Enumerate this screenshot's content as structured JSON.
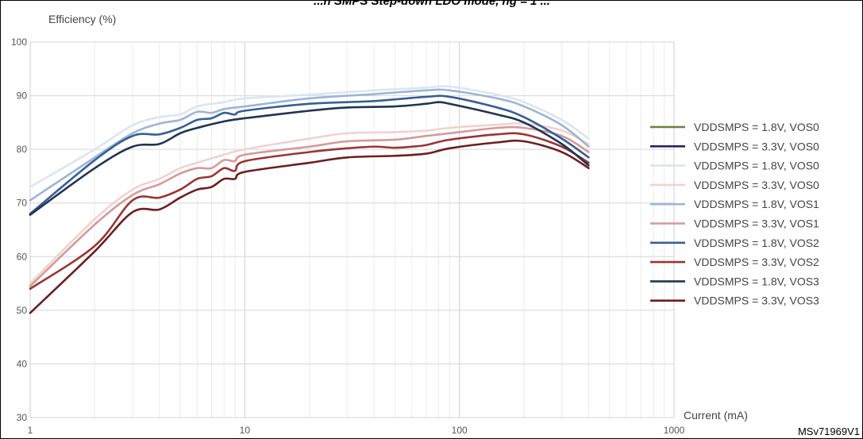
{
  "figure": {
    "title": "...n SMPS Step-down LDO mode, ng = 1 ...",
    "code": "MSv71969V1"
  },
  "chart_data": {
    "type": "line",
    "title": "",
    "xlabel": "Current (mA)",
    "ylabel": "Efficiency (%)",
    "xscale": "log",
    "xlim": [
      1,
      1000
    ],
    "ylim": [
      30,
      100
    ],
    "xticks": [
      1,
      10,
      100,
      1000
    ],
    "yticks": [
      30,
      40,
      50,
      60,
      70,
      80,
      90,
      100
    ],
    "grid": true,
    "legend_position": "right",
    "series": [
      {
        "name": "VDDSMPS = 1.8V, VOS0",
        "color": "#6b7f3a",
        "legend_only": true,
        "points": []
      },
      {
        "name": "VDDSMPS = 3.3V, VOS0",
        "color": "#2f2060",
        "legend_only": true,
        "points": []
      },
      {
        "name": "VDDSMPS = 1.8V, VOS0",
        "color": "#dce5f1",
        "points": [
          [
            1,
            73
          ],
          [
            2,
            80
          ],
          [
            3,
            84.5
          ],
          [
            4,
            86
          ],
          [
            5,
            86.5
          ],
          [
            6,
            88
          ],
          [
            8,
            88.8
          ],
          [
            10,
            89.5
          ],
          [
            20,
            90.2
          ],
          [
            40,
            91
          ],
          [
            70,
            91.5
          ],
          [
            90,
            91.7
          ],
          [
            150,
            90.2
          ],
          [
            200,
            88.8
          ],
          [
            300,
            85.5
          ],
          [
            400,
            82
          ]
        ]
      },
      {
        "name": "VDDSMPS = 3.3V, VOS0",
        "color": "#f0d2d2",
        "points": [
          [
            1,
            55
          ],
          [
            2,
            67
          ],
          [
            3,
            72.5
          ],
          [
            4,
            74.5
          ],
          [
            5,
            76.5
          ],
          [
            6,
            77.5
          ],
          [
            8,
            79
          ],
          [
            10,
            80
          ],
          [
            20,
            82
          ],
          [
            30,
            83
          ],
          [
            50,
            83.2
          ],
          [
            70,
            83.5
          ],
          [
            90,
            84
          ],
          [
            150,
            84.6
          ],
          [
            200,
            84.8
          ],
          [
            300,
            83.5
          ],
          [
            400,
            81
          ]
        ]
      },
      {
        "name": "VDDSMPS = 1.8V, VOS1",
        "color": "#9cb4d8",
        "points": [
          [
            1,
            70.5
          ],
          [
            2,
            78.5
          ],
          [
            3,
            83
          ],
          [
            4,
            84.8
          ],
          [
            5,
            85.5
          ],
          [
            6,
            87
          ],
          [
            7,
            86.8
          ],
          [
            8,
            87.5
          ],
          [
            10,
            88
          ],
          [
            20,
            89.5
          ],
          [
            40,
            90.3
          ],
          [
            70,
            91
          ],
          [
            90,
            91
          ],
          [
            150,
            89.5
          ],
          [
            200,
            88
          ],
          [
            300,
            84.5
          ],
          [
            400,
            80.5
          ]
        ]
      },
      {
        "name": "VDDSMPS = 3.3V, VOS1",
        "color": "#d59a9a",
        "points": [
          [
            1,
            54.5
          ],
          [
            2,
            66
          ],
          [
            3,
            71.5
          ],
          [
            4,
            73.5
          ],
          [
            5,
            75.5
          ],
          [
            6,
            76.5
          ],
          [
            7,
            76.5
          ],
          [
            8,
            78
          ],
          [
            9,
            77.8
          ],
          [
            10,
            79
          ],
          [
            20,
            80.5
          ],
          [
            30,
            81.5
          ],
          [
            50,
            81.8
          ],
          [
            70,
            82.5
          ],
          [
            90,
            83
          ],
          [
            150,
            84
          ],
          [
            200,
            84
          ],
          [
            300,
            82.5
          ],
          [
            400,
            79.5
          ]
        ]
      },
      {
        "name": "VDDSMPS = 1.8V, VOS2",
        "color": "#375f94",
        "points": [
          [
            1,
            68
          ],
          [
            2,
            78
          ],
          [
            3,
            82.5
          ],
          [
            4,
            82.8
          ],
          [
            5,
            84
          ],
          [
            6,
            85.5
          ],
          [
            7,
            85.8
          ],
          [
            8,
            86.8
          ],
          [
            9,
            86.5
          ],
          [
            10,
            87.2
          ],
          [
            20,
            88.5
          ],
          [
            40,
            89
          ],
          [
            70,
            89.8
          ],
          [
            90,
            89.8
          ],
          [
            150,
            87.8
          ],
          [
            200,
            86
          ],
          [
            300,
            82
          ],
          [
            400,
            78.5
          ]
        ]
      },
      {
        "name": "VDDSMPS = 3.3V, VOS2",
        "color": "#9b3434",
        "points": [
          [
            1,
            54
          ],
          [
            2,
            62
          ],
          [
            3,
            70.5
          ],
          [
            4,
            71
          ],
          [
            5,
            72.5
          ],
          [
            6,
            74.5
          ],
          [
            7,
            75
          ],
          [
            8,
            76.5
          ],
          [
            9,
            76
          ],
          [
            10,
            77.8
          ],
          [
            20,
            79.5
          ],
          [
            30,
            80.2
          ],
          [
            40,
            80.5
          ],
          [
            50,
            80.3
          ],
          [
            60,
            80.5
          ],
          [
            70,
            80.8
          ],
          [
            90,
            81.8
          ],
          [
            150,
            82.8
          ],
          [
            200,
            82.8
          ],
          [
            300,
            80.5
          ],
          [
            400,
            77.5
          ]
        ]
      },
      {
        "name": "VDDSMPS = 1.8V, VOS3",
        "color": "#1f3553",
        "points": [
          [
            1,
            67.8
          ],
          [
            2,
            76.5
          ],
          [
            3,
            80.5
          ],
          [
            4,
            81
          ],
          [
            5,
            83
          ],
          [
            6,
            84
          ],
          [
            8,
            85.2
          ],
          [
            10,
            85.8
          ],
          [
            20,
            87.2
          ],
          [
            30,
            87.8
          ],
          [
            50,
            88
          ],
          [
            70,
            88.5
          ],
          [
            80,
            88.8
          ],
          [
            90,
            88.5
          ],
          [
            150,
            86.5
          ],
          [
            200,
            85
          ],
          [
            300,
            81
          ],
          [
            400,
            77
          ]
        ]
      },
      {
        "name": "VDDSMPS = 3.3V, VOS3",
        "color": "#6b1f1f",
        "points": [
          [
            1,
            49.5
          ],
          [
            2,
            61
          ],
          [
            3,
            68.3
          ],
          [
            4,
            68.8
          ],
          [
            5,
            71
          ],
          [
            6,
            72.5
          ],
          [
            7,
            73
          ],
          [
            8,
            74.5
          ],
          [
            9,
            74.5
          ],
          [
            10,
            75.8
          ],
          [
            20,
            77.5
          ],
          [
            30,
            78.5
          ],
          [
            50,
            78.8
          ],
          [
            70,
            79.2
          ],
          [
            90,
            80.2
          ],
          [
            150,
            81.3
          ],
          [
            200,
            81.5
          ],
          [
            300,
            79.5
          ],
          [
            400,
            76.5
          ]
        ]
      }
    ]
  }
}
